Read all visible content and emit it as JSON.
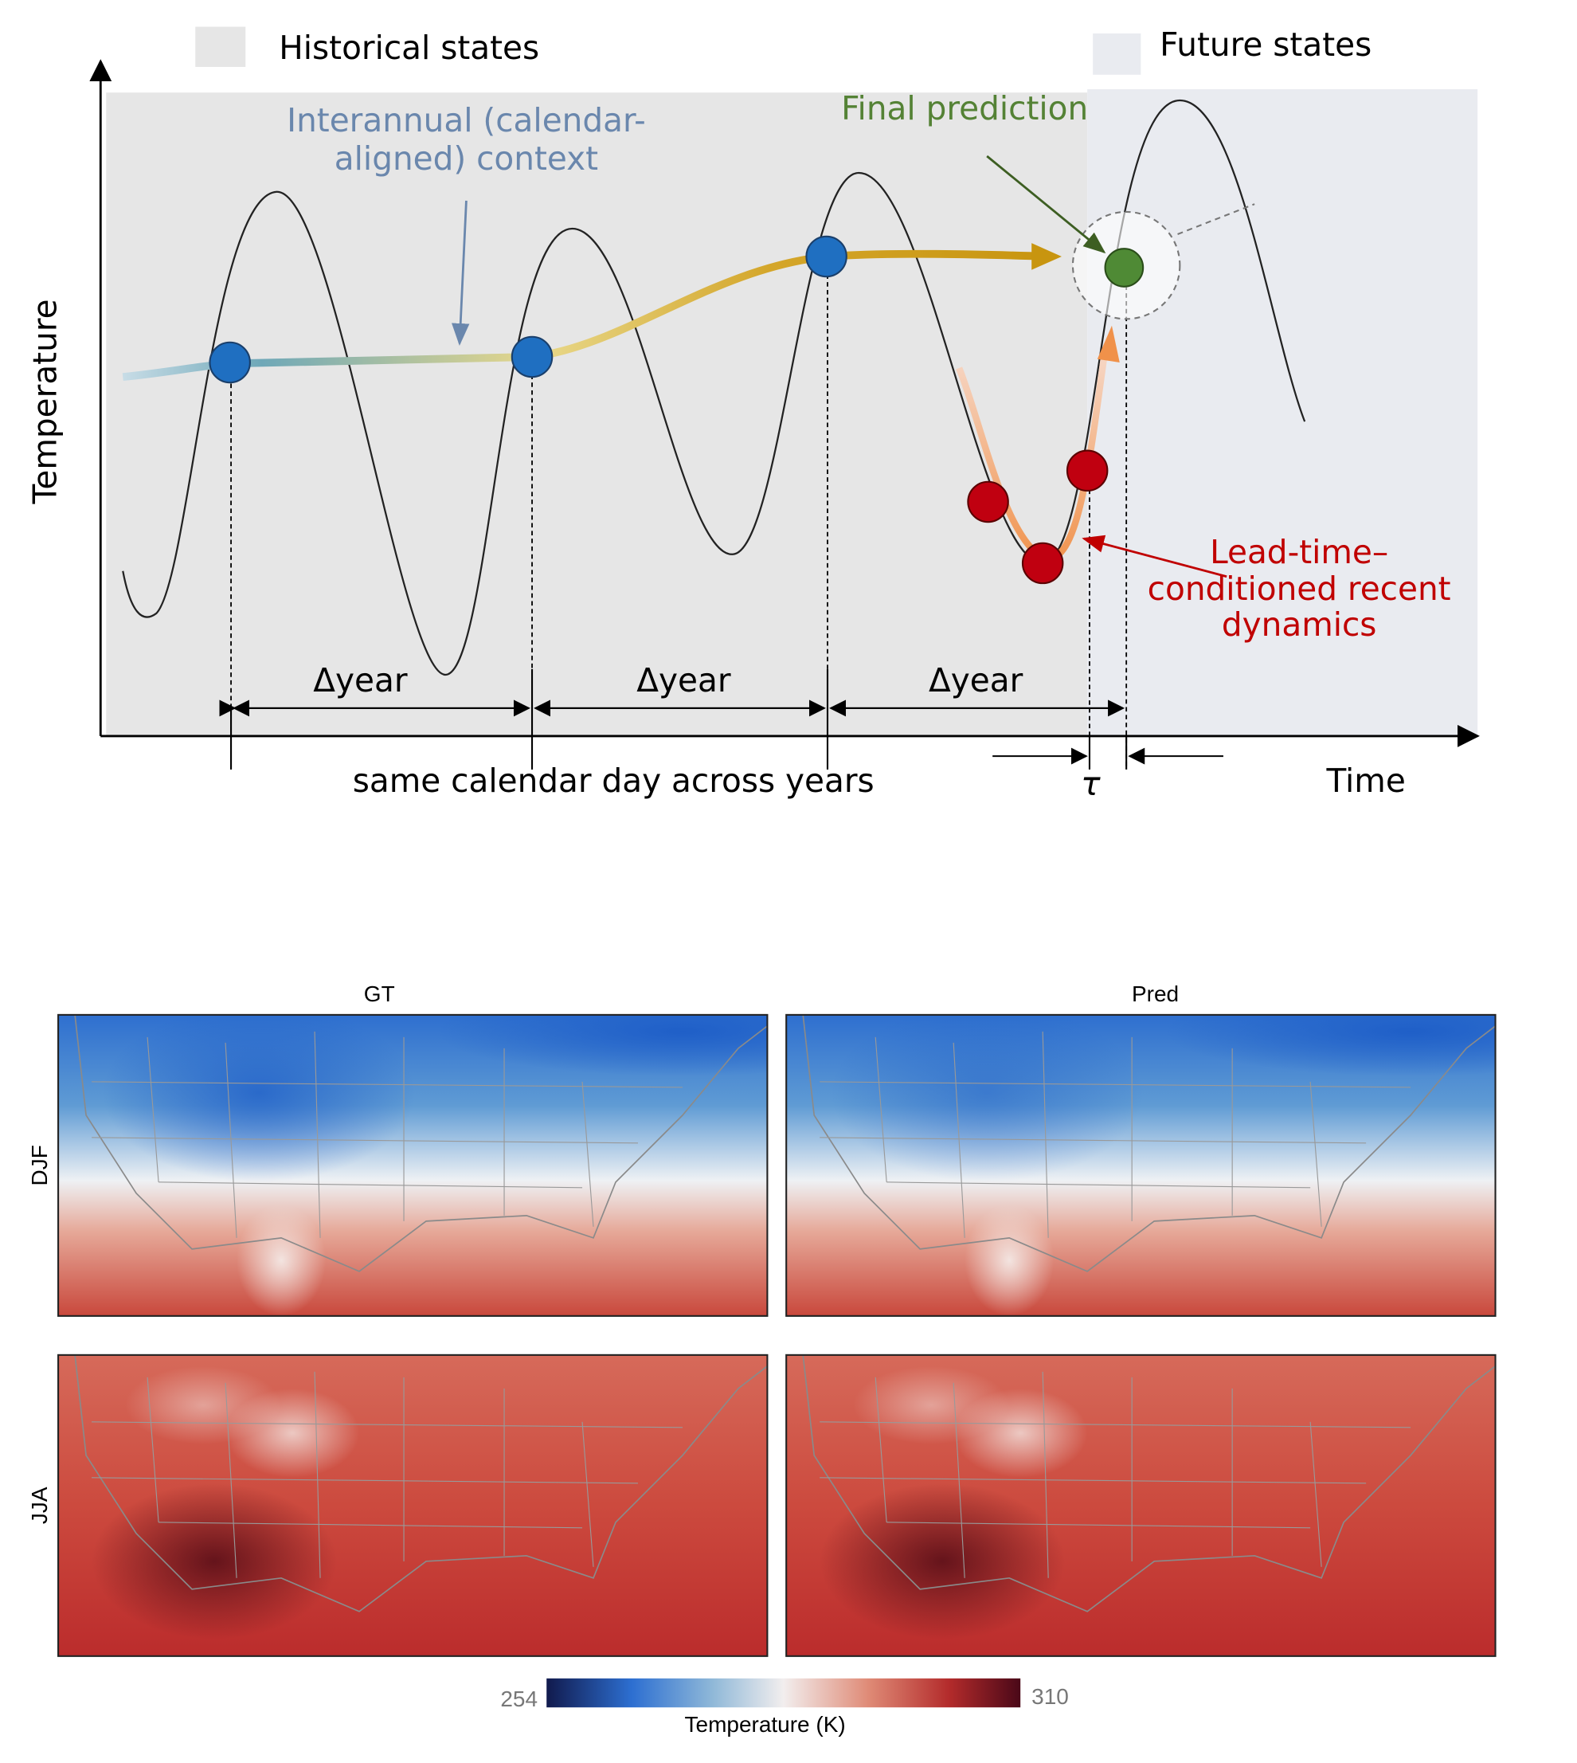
{
  "legend": {
    "historical": "Historical states",
    "future": "Future states"
  },
  "axes": {
    "y_label": "Temperature",
    "x_label": "Time"
  },
  "annotations": {
    "interannual": [
      "Interannual (calendar-",
      "aligned) context"
    ],
    "final": "Final prediction",
    "recent": [
      "Lead-time–",
      "conditioned recent",
      "dynamics"
    ],
    "delta": [
      "Δyear",
      "Δyear",
      "Δyear"
    ],
    "same_day": "same calendar day across years",
    "tau": "τ"
  },
  "maps": {
    "columns": [
      "GT",
      "Pred"
    ],
    "rows": [
      "DJF",
      "JJA"
    ]
  },
  "colorbar": {
    "min": 254,
    "max": 310,
    "label": "Temperature (K)"
  }
}
